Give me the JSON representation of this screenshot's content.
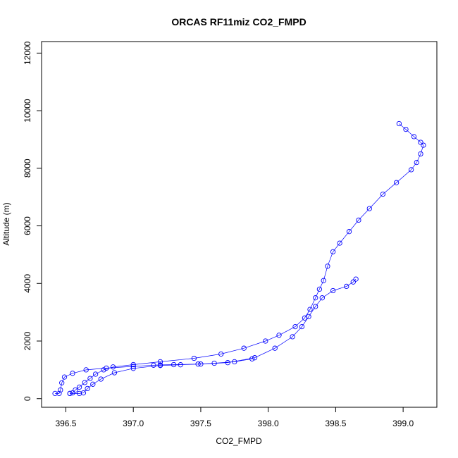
{
  "chart_data": {
    "type": "scatter",
    "title": "ORCAS RF11miz CO2_FMPD",
    "xlabel": "CO2_FMPD",
    "ylabel": "Altitude (m)",
    "xlim": [
      396.32,
      399.25
    ],
    "ylim": [
      -300,
      12400
    ],
    "x_ticks": [
      "396.5",
      "397.0",
      "397.5",
      "398.0",
      "398.5",
      "399.0"
    ],
    "y_ticks": [
      "0",
      "2000",
      "4000",
      "6000",
      "8000",
      "10000",
      "12000"
    ],
    "x_tick_values": [
      396.5,
      397.0,
      397.5,
      398.0,
      398.5,
      399.0
    ],
    "y_tick_values": [
      0,
      2000,
      4000,
      6000,
      8000,
      10000,
      12000
    ],
    "grid": false,
    "marker": "open-circle",
    "connected_by_line": true,
    "color": "#0000ff",
    "series": [
      {
        "points": [
          [
            398.97,
            9550
          ],
          [
            399.02,
            9350
          ],
          [
            399.08,
            9100
          ],
          [
            399.13,
            8900
          ],
          [
            399.15,
            8800
          ],
          [
            399.13,
            8500
          ],
          [
            399.1,
            8200
          ],
          [
            399.06,
            7950
          ],
          [
            398.95,
            7500
          ],
          [
            398.85,
            7100
          ],
          [
            398.75,
            6600
          ],
          [
            398.67,
            6200
          ],
          [
            398.6,
            5800
          ],
          [
            398.53,
            5400
          ],
          [
            398.48,
            5100
          ],
          [
            398.44,
            4600
          ],
          [
            398.41,
            4100
          ],
          [
            398.38,
            3800
          ],
          [
            398.35,
            3500
          ],
          [
            398.31,
            3100
          ],
          [
            398.27,
            2800
          ],
          [
            398.2,
            2500
          ],
          [
            398.08,
            2200
          ],
          [
            397.98,
            2000
          ],
          [
            397.82,
            1750
          ],
          [
            397.65,
            1550
          ],
          [
            397.45,
            1400
          ],
          [
            397.2,
            1280
          ],
          [
            397.0,
            1180
          ],
          [
            396.85,
            1100
          ],
          [
            396.78,
            1000
          ],
          [
            396.72,
            850
          ],
          [
            396.68,
            700
          ],
          [
            396.64,
            560
          ],
          [
            396.6,
            400
          ],
          [
            396.57,
            300
          ],
          [
            396.55,
            200
          ],
          [
            396.53,
            180
          ]
        ]
      },
      {
        "points": [
          [
            396.53,
            180
          ],
          [
            396.6,
            180
          ],
          [
            396.63,
            200
          ],
          [
            396.66,
            350
          ],
          [
            396.7,
            500
          ],
          [
            396.76,
            680
          ],
          [
            396.86,
            900
          ],
          [
            397.0,
            1050
          ],
          [
            397.2,
            1150
          ],
          [
            397.35,
            1175
          ],
          [
            397.5,
            1200
          ],
          [
            397.7,
            1250
          ],
          [
            397.9,
            1420
          ],
          [
            398.05,
            1750
          ],
          [
            398.18,
            2150
          ],
          [
            398.25,
            2500
          ],
          [
            398.3,
            2850
          ],
          [
            398.35,
            3200
          ],
          [
            398.4,
            3500
          ],
          [
            398.48,
            3750
          ],
          [
            398.58,
            3900
          ],
          [
            398.63,
            4050
          ],
          [
            398.65,
            4150
          ]
        ]
      },
      {
        "points": [
          [
            396.42,
            180
          ],
          [
            396.45,
            180
          ],
          [
            396.46,
            300
          ],
          [
            396.47,
            550
          ],
          [
            396.49,
            750
          ],
          [
            396.55,
            880
          ],
          [
            396.65,
            1000
          ],
          [
            396.8,
            1060
          ],
          [
            397.0,
            1120
          ],
          [
            397.15,
            1160
          ],
          [
            397.2,
            1170
          ],
          [
            397.3,
            1180
          ],
          [
            397.48,
            1200
          ],
          [
            397.6,
            1230
          ],
          [
            397.75,
            1280
          ],
          [
            397.88,
            1380
          ]
        ]
      }
    ]
  }
}
